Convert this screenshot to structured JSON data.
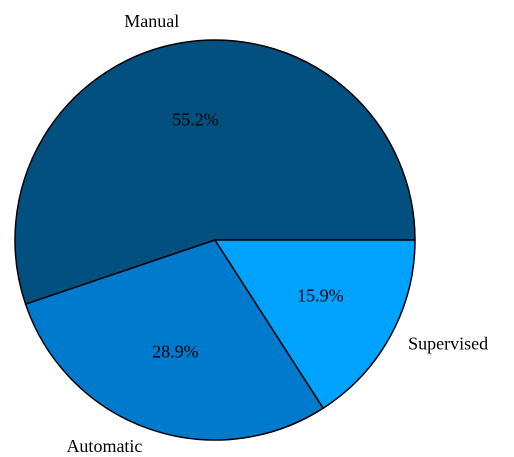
{
  "chart_data": {
    "type": "pie",
    "categories": [
      "Manual",
      "Automatic",
      "Supervised"
    ],
    "values": [
      55.2,
      28.9,
      15.9
    ],
    "value_labels": [
      "55.2%",
      "28.9%",
      "15.9%"
    ],
    "colors": [
      "#01507f",
      "#007acc",
      "#00a2ff"
    ]
  }
}
